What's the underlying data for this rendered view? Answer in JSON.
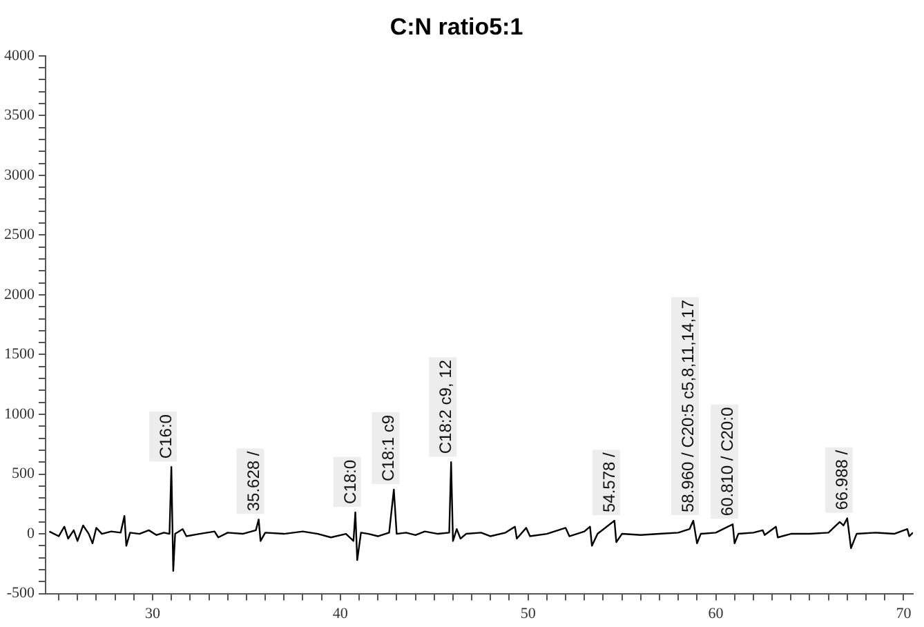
{
  "chart_data": {
    "type": "line",
    "title": "C:N ratio5:1",
    "x": [
      24.5,
      25.0,
      25.3,
      25.5,
      25.8,
      26.0,
      26.3,
      26.6,
      26.8,
      27.0,
      27.3,
      27.8,
      28.3,
      28.5,
      28.6,
      28.8,
      29.3,
      29.8,
      30.2,
      30.6,
      30.9,
      31.0,
      31.1,
      31.2,
      31.6,
      31.8,
      32.5,
      33.3,
      33.5,
      34.0,
      34.8,
      35.5,
      35.65,
      35.75,
      36.0,
      37.0,
      38.0,
      38.8,
      39.5,
      40.3,
      40.7,
      40.8,
      40.9,
      41.1,
      41.5,
      42.0,
      42.6,
      42.85,
      43.0,
      43.5,
      44.0,
      44.5,
      45.2,
      45.8,
      45.9,
      46.0,
      46.2,
      46.4,
      46.7,
      47.5,
      48.0,
      48.8,
      49.3,
      49.4,
      49.9,
      50.1,
      51.0,
      52.0,
      52.2,
      53.0,
      53.3,
      53.4,
      53.7,
      54.6,
      54.7,
      55.0,
      56.0,
      57.0,
      58.0,
      58.6,
      58.8,
      59.0,
      59.2,
      60.0,
      60.9,
      61.0,
      61.2,
      62.0,
      62.5,
      62.6,
      63.2,
      63.3,
      64.0,
      65.0,
      66.0,
      66.6,
      66.8,
      67.0,
      67.2,
      67.5,
      68.5,
      69.5,
      70.2,
      70.3,
      70.5
    ],
    "series": [
      {
        "color": "#000000",
        "values": [
          20,
          -20,
          60,
          -40,
          30,
          -60,
          70,
          0,
          -80,
          50,
          0,
          20,
          10,
          150,
          -100,
          10,
          0,
          30,
          -10,
          10,
          0,
          560,
          -310,
          0,
          40,
          -20,
          0,
          20,
          -30,
          10,
          0,
          30,
          120,
          -60,
          10,
          0,
          20,
          0,
          -30,
          0,
          -60,
          180,
          -220,
          10,
          0,
          -20,
          10,
          370,
          0,
          10,
          -10,
          20,
          0,
          10,
          600,
          -60,
          40,
          -40,
          0,
          10,
          -20,
          10,
          60,
          -40,
          50,
          -20,
          0,
          50,
          -20,
          20,
          60,
          -100,
          0,
          110,
          -70,
          0,
          -10,
          0,
          10,
          40,
          110,
          -80,
          0,
          10,
          80,
          -80,
          0,
          10,
          30,
          -10,
          60,
          -30,
          0,
          0,
          10,
          100,
          70,
          130,
          -120,
          0,
          10,
          0,
          40,
          -20,
          10
        ]
      }
    ],
    "xlim": [
      24.3,
      70.5
    ],
    "xticks": [
      {
        "value": 25,
        "label": null
      },
      {
        "value": 26,
        "label": null
      },
      {
        "value": 27,
        "label": null
      },
      {
        "value": 28,
        "label": null
      },
      {
        "value": 29,
        "label": null
      },
      30,
      {
        "value": 31,
        "label": null
      },
      {
        "value": 32,
        "label": null
      },
      {
        "value": 33,
        "label": null
      },
      {
        "value": 34,
        "label": null
      },
      {
        "value": 35,
        "label": null
      },
      {
        "value": 36,
        "label": null
      },
      {
        "value": 37,
        "label": null
      },
      {
        "value": 38,
        "label": null
      },
      {
        "value": 39,
        "label": null
      },
      40,
      {
        "value": 41,
        "label": null
      },
      {
        "value": 42,
        "label": null
      },
      {
        "value": 43,
        "label": null
      },
      {
        "value": 44,
        "label": null
      },
      {
        "value": 45,
        "label": null
      },
      {
        "value": 46,
        "label": null
      },
      {
        "value": 47,
        "label": null
      },
      {
        "value": 48,
        "label": null
      },
      {
        "value": 49,
        "label": null
      },
      50,
      {
        "value": 51,
        "label": null
      },
      {
        "value": 52,
        "label": null
      },
      {
        "value": 53,
        "label": null
      },
      {
        "value": 54,
        "label": null
      },
      {
        "value": 55,
        "label": null
      },
      {
        "value": 56,
        "label": null
      },
      {
        "value": 57,
        "label": null
      },
      {
        "value": 58,
        "label": null
      },
      {
        "value": 59,
        "label": null
      },
      60,
      {
        "value": 61,
        "label": null
      },
      {
        "value": 62,
        "label": null
      },
      {
        "value": 63,
        "label": null
      },
      {
        "value": 64,
        "label": null
      },
      {
        "value": 65,
        "label": null
      },
      {
        "value": 66,
        "label": null
      },
      {
        "value": 67,
        "label": null
      },
      {
        "value": 68,
        "label": null
      },
      {
        "value": 69,
        "label": null
      },
      70
    ],
    "ylim": [
      -500,
      4000
    ],
    "yticks": [
      -500,
      {
        "value": -400,
        "label": null
      },
      {
        "value": -300,
        "label": null
      },
      {
        "value": -200,
        "label": null
      },
      {
        "value": -100,
        "label": null
      },
      0,
      {
        "value": 100,
        "label": null
      },
      {
        "value": 200,
        "label": null
      },
      {
        "value": 300,
        "label": null
      },
      {
        "value": 400,
        "label": null
      },
      500,
      {
        "value": 600,
        "label": null
      },
      {
        "value": 700,
        "label": null
      },
      {
        "value": 800,
        "label": null
      },
      {
        "value": 900,
        "label": null
      },
      1000,
      {
        "value": 1100,
        "label": null
      },
      {
        "value": 1200,
        "label": null
      },
      {
        "value": 1300,
        "label": null
      },
      {
        "value": 1400,
        "label": null
      },
      1500,
      {
        "value": 1600,
        "label": null
      },
      {
        "value": 1700,
        "label": null
      },
      {
        "value": 1800,
        "label": null
      },
      {
        "value": 1900,
        "label": null
      },
      2000,
      {
        "value": 2100,
        "label": null
      },
      {
        "value": 2200,
        "label": null
      },
      {
        "value": 2300,
        "label": null
      },
      {
        "value": 2400,
        "label": null
      },
      2500,
      {
        "value": 2600,
        "label": null
      },
      {
        "value": 2700,
        "label": null
      },
      {
        "value": 2800,
        "label": null
      },
      {
        "value": 2900,
        "label": null
      },
      3000,
      {
        "value": 3100,
        "label": null
      },
      {
        "value": 3200,
        "label": null
      },
      {
        "value": 3300,
        "label": null
      },
      {
        "value": 3400,
        "label": null
      },
      3500,
      {
        "value": 3600,
        "label": null
      },
      {
        "value": 3700,
        "label": null
      },
      {
        "value": 3800,
        "label": null
      },
      {
        "value": 3900,
        "label": null
      },
      4000
    ],
    "annotations": [
      {
        "text": "C16:0",
        "x": 31.0,
        "y": 560
      },
      {
        "text": "35.628 /",
        "x": 35.65,
        "y": 120
      },
      {
        "text": "C18:0",
        "x": 40.8,
        "y": 180
      },
      {
        "text": "C18:1 c9",
        "x": 42.85,
        "y": 370
      },
      {
        "text": "C18:2 c9, 12",
        "x": 45.9,
        "y": 600
      },
      {
        "text": "54.578 /",
        "x": 54.6,
        "y": 110
      },
      {
        "text": "58.960 / C20:5 c5,8,11,14,17",
        "x": 58.8,
        "y": 110
      },
      {
        "text": "60.810 / C20:0",
        "x": 60.9,
        "y": 80
      },
      {
        "text": "66.988 /",
        "x": 67.0,
        "y": 130
      }
    ],
    "grid": false,
    "legend": false,
    "marker": "none",
    "line_style": "solid"
  }
}
